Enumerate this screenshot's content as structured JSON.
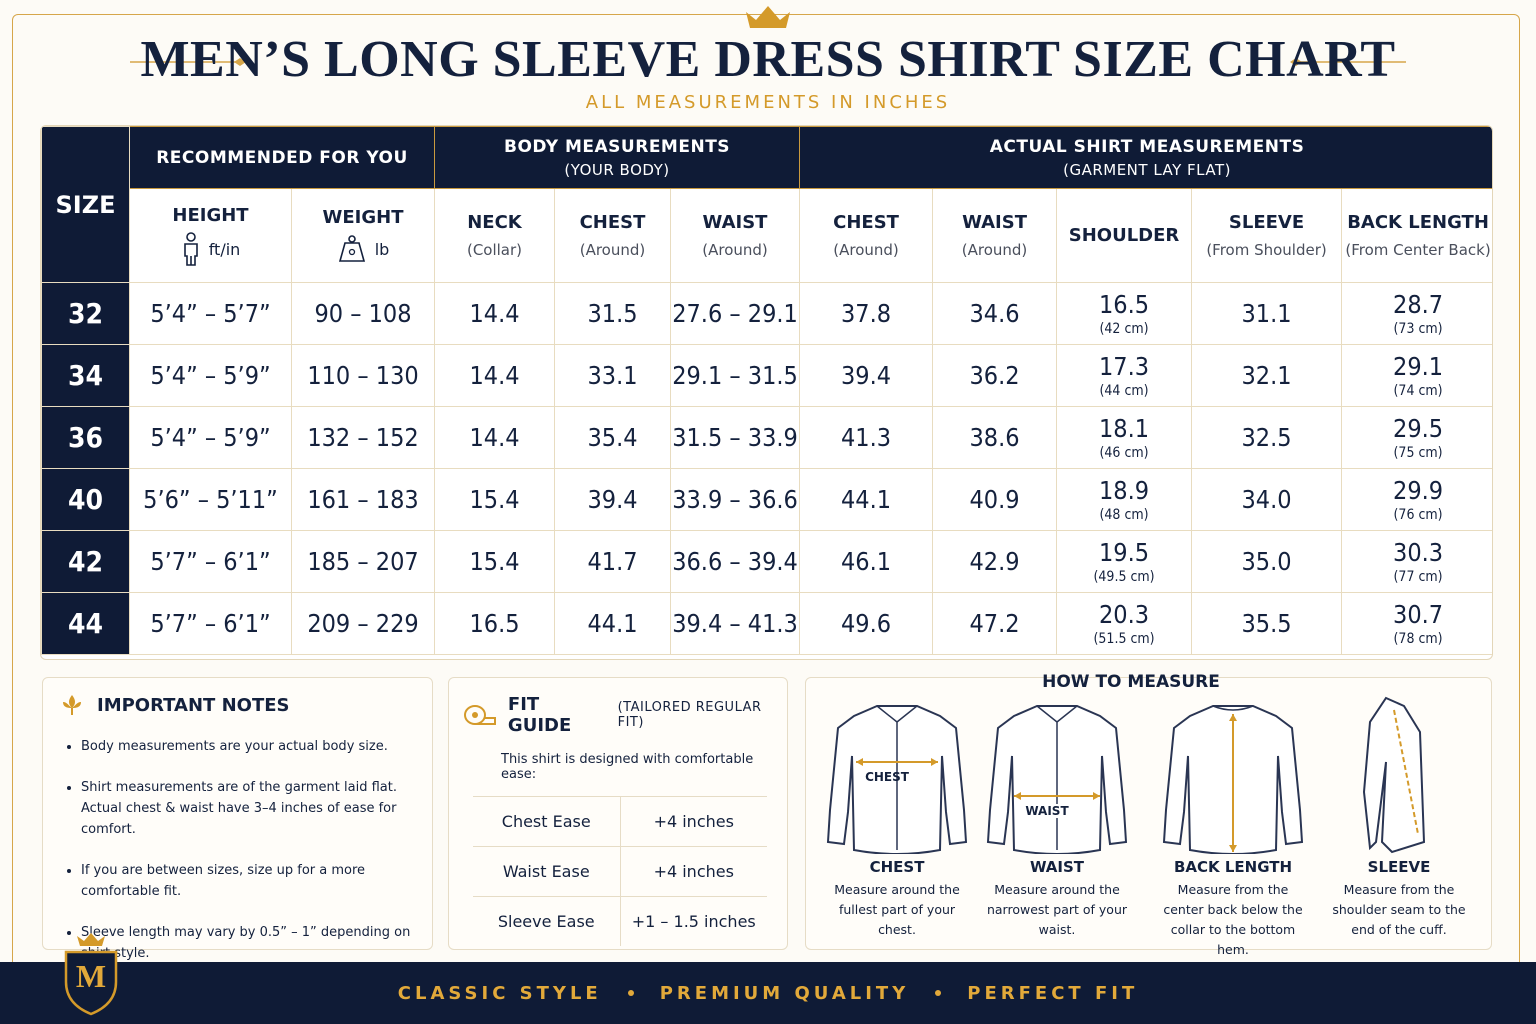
{
  "header": {
    "title": "MEN’S LONG SLEEVE DRESS SHIRT SIZE CHART",
    "subtitle": "ALL MEASUREMENTS IN INCHES"
  },
  "table": {
    "size_header": "SIZE",
    "groups": [
      {
        "title": "RECOMMENDED FOR YOU"
      },
      {
        "title": "BODY MEASUREMENTS",
        "subtitle": "(YOUR BODY)"
      },
      {
        "title": "ACTUAL SHIRT MEASUREMENTS",
        "subtitle": "(GARMENT LAY FLAT)"
      }
    ],
    "columns": [
      {
        "label": "HEIGHT",
        "unit": "ft/in"
      },
      {
        "label": "WEIGHT",
        "unit": "lb"
      },
      {
        "label": "NECK",
        "note": "(Collar)"
      },
      {
        "label": "CHEST",
        "note": "(Around)"
      },
      {
        "label": "WAIST",
        "note": "(Around)"
      },
      {
        "label": "CHEST",
        "note": "(Around)"
      },
      {
        "label": "WAIST",
        "note": "(Around)"
      },
      {
        "label": "SHOULDER"
      },
      {
        "label": "SLEEVE",
        "note": "(From Shoulder)"
      },
      {
        "label": "BACK LENGTH",
        "note": "(From Center Back)"
      }
    ],
    "rows": [
      {
        "cells": [
          "32",
          "5’4” – 5’7”",
          "90 – 108",
          "14.4",
          "31.5",
          "27.6 – 29.1",
          "37.8",
          "34.6",
          "16.5",
          "31.1",
          "28.7"
        ],
        "shoulder_cm": "(42 cm)",
        "back_length_cm": "(73 cm)"
      },
      {
        "cells": [
          "34",
          "5’4” – 5’9”",
          "110 – 130",
          "14.4",
          "33.1",
          "29.1 – 31.5",
          "39.4",
          "36.2",
          "17.3",
          "32.1",
          "29.1"
        ],
        "shoulder_cm": "(44 cm)",
        "back_length_cm": "(74 cm)"
      },
      {
        "cells": [
          "36",
          "5’4” – 5’9”",
          "132 – 152",
          "14.4",
          "35.4",
          "31.5 – 33.9",
          "41.3",
          "38.6",
          "18.1",
          "32.5",
          "29.5"
        ],
        "shoulder_cm": "(46 cm)",
        "back_length_cm": "(75 cm)"
      },
      {
        "cells": [
          "40",
          "5’6” – 5’11”",
          "161 – 183",
          "15.4",
          "39.4",
          "33.9 – 36.6",
          "44.1",
          "40.9",
          "18.9",
          "34.0",
          "29.9"
        ],
        "shoulder_cm": "(48 cm)",
        "back_length_cm": "(76 cm)"
      },
      {
        "cells": [
          "42",
          "5’7” – 6’1”",
          "185 – 207",
          "15.4",
          "41.7",
          "36.6 – 39.4",
          "46.1",
          "42.9",
          "19.5",
          "35.0",
          "30.3"
        ],
        "shoulder_cm": "(49.5 cm)",
        "back_length_cm": "(77 cm)"
      },
      {
        "cells": [
          "44",
          "5’7” – 6’1”",
          "209 – 229",
          "16.5",
          "44.1",
          "39.4 – 41.3",
          "49.6",
          "47.2",
          "20.3",
          "35.5",
          "30.7"
        ],
        "shoulder_cm": "(51.5 cm)",
        "back_length_cm": "(78 cm)"
      }
    ]
  },
  "notes": {
    "title": "IMPORTANT NOTES",
    "items": [
      [
        "Body measurements are your actual body size."
      ],
      [
        "Shirt measurements are of the garment laid flat.",
        "Actual chest & waist have 3–4 inches of ease for comfort."
      ],
      [
        "If you are between sizes, size up for a more comfortable fit."
      ],
      [
        "Sleeve length may vary by 0.5” – 1” depending on shirt style."
      ]
    ]
  },
  "fit_guide": {
    "title": "FIT GUIDE",
    "subtitle": "(TAILORED REGULAR FIT)",
    "intro": "This shirt is designed with comfortable ease:",
    "rows": [
      [
        "Chest Ease",
        "+4 inches"
      ],
      [
        "Waist Ease",
        "+4 inches"
      ],
      [
        "Sleeve Ease",
        "+1 – 1.5 inches"
      ]
    ]
  },
  "how_to_measure": {
    "title": "HOW TO MEASURE",
    "items": [
      {
        "figure_label": "CHEST",
        "name": "CHEST",
        "description": "Measure around the fullest part of your chest."
      },
      {
        "figure_label": "WAIST",
        "name": "WAIST",
        "description": "Measure around the narrowest part of your waist."
      },
      {
        "name": "BACK LENGTH",
        "description": "Measure from the center back below the collar to the bottom hem."
      },
      {
        "name": "SLEEVE",
        "description": "Measure from the shoulder seam to the end of the cuff."
      }
    ]
  },
  "footer": {
    "logo": "M",
    "items": [
      "CLASSIC STYLE",
      "PREMIUM QUALITY",
      "PERFECT FIT"
    ]
  }
}
